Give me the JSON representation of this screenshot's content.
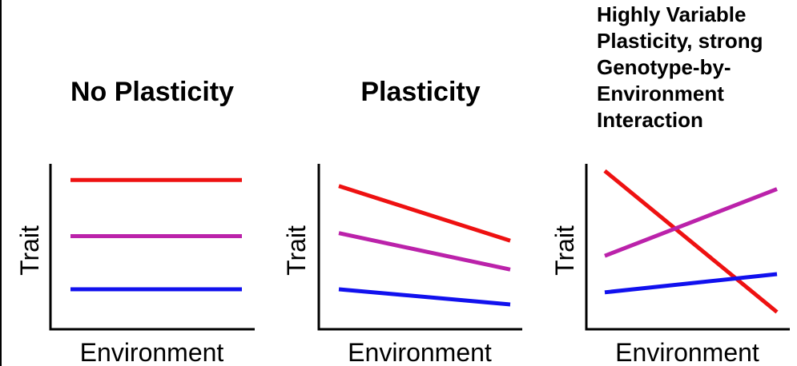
{
  "panels": [
    {
      "title": "No Plasticity",
      "ylabel": "Trait",
      "xlabel": "Environment",
      "lines": [
        {
          "color": "#ee1111",
          "y_start": 0.92,
          "y_end": 0.92
        },
        {
          "color": "#bb22aa",
          "y_start": 0.55,
          "y_end": 0.55
        },
        {
          "color": "#1111ee",
          "y_start": 0.2,
          "y_end": 0.2
        }
      ]
    },
    {
      "title": "Plasticity",
      "ylabel": "Trait",
      "xlabel": "Environment",
      "lines": [
        {
          "color": "#ee1111",
          "y_start": 0.88,
          "y_end": 0.52
        },
        {
          "color": "#bb22aa",
          "y_start": 0.57,
          "y_end": 0.33
        },
        {
          "color": "#1111ee",
          "y_start": 0.2,
          "y_end": 0.1
        }
      ]
    },
    {
      "title_lines": [
        "Highly Variable",
        "Plasticity, strong",
        "Genotype-by-",
        "Environment",
        "Interaction"
      ],
      "ylabel": "Trait",
      "xlabel": "Environment",
      "lines": [
        {
          "color": "#ee1111",
          "y_start": 0.98,
          "y_end": 0.05
        },
        {
          "color": "#bb22aa",
          "y_start": 0.42,
          "y_end": 0.86
        },
        {
          "color": "#1111ee",
          "y_start": 0.18,
          "y_end": 0.3
        }
      ]
    }
  ]
}
